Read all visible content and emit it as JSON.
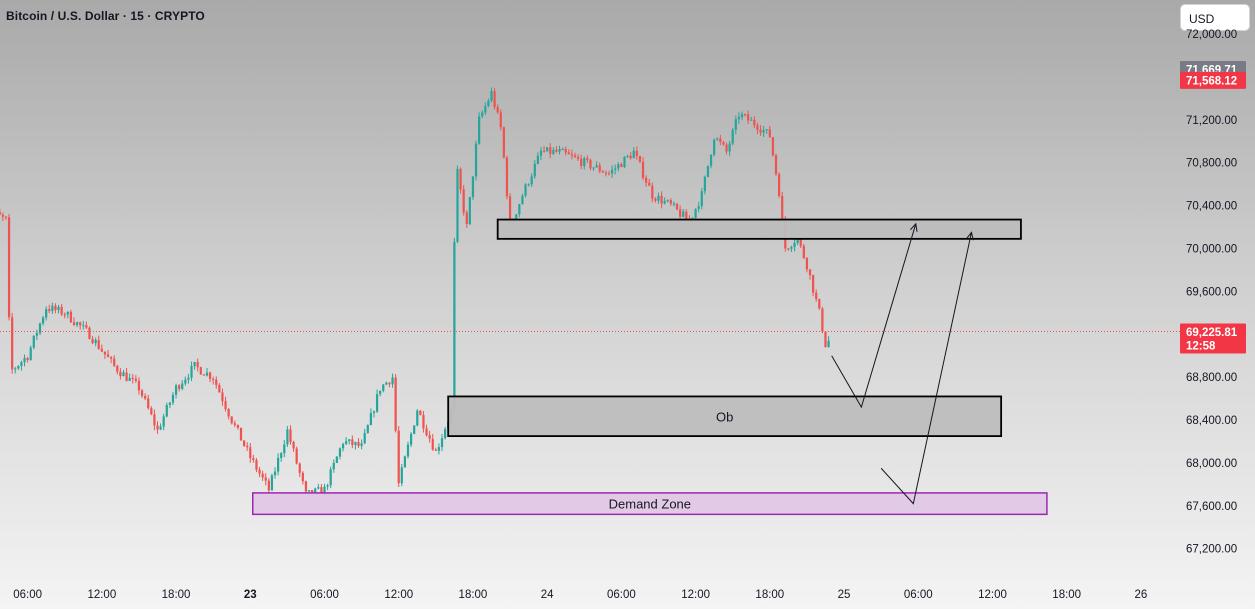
{
  "header": {
    "title": "Bitcoin / U.S. Dollar · 15 · CRYPTO",
    "currency": "USD"
  },
  "colors": {
    "up": "#26a69a",
    "down": "#ef5350",
    "last_price_line": "#ef5350",
    "ob_fill": "#bdbdbd",
    "demand_fill": "#e1c8e7",
    "demand_border": "#9c27b0",
    "arrow": "#131722"
  },
  "price_tags": [
    {
      "label": "71,669.71",
      "price": 71669.71,
      "color": "#787b86"
    },
    {
      "label": "71,568.12",
      "price": 71568.12,
      "color": "#f23645"
    },
    {
      "label": "69,225.81",
      "sub": "12:58",
      "price": 69225.81,
      "color": "#f23645"
    }
  ],
  "chart_data": {
    "type": "candlestick",
    "title": "Bitcoin / U.S. Dollar · 15 · CRYPTO",
    "ylim": [
      67000,
      72100
    ],
    "x_ticks": [
      {
        "label": "06:00",
        "t": 6,
        "bold": false
      },
      {
        "label": "12:00",
        "t": 12,
        "bold": false
      },
      {
        "label": "18:00",
        "t": 18,
        "bold": false
      },
      {
        "label": "23",
        "t": 24,
        "bold": true
      },
      {
        "label": "06:00",
        "t": 30,
        "bold": false
      },
      {
        "label": "12:00",
        "t": 36,
        "bold": false
      },
      {
        "label": "18:00",
        "t": 42,
        "bold": false
      },
      {
        "label": "24",
        "t": 48,
        "bold": false
      },
      {
        "label": "06:00",
        "t": 54,
        "bold": false
      },
      {
        "label": "12:00",
        "t": 60,
        "bold": false
      },
      {
        "label": "18:00",
        "t": 66,
        "bold": false
      },
      {
        "label": "25",
        "t": 72,
        "bold": false
      },
      {
        "label": "06:00",
        "t": 78,
        "bold": false
      },
      {
        "label": "12:00",
        "t": 84,
        "bold": false
      },
      {
        "label": "18:00",
        "t": 90,
        "bold": false
      },
      {
        "label": "26",
        "t": 96,
        "bold": false
      }
    ],
    "y_ticks": [
      {
        "label": "72,000.00",
        "v": 72000
      },
      {
        "label": "71,200.00",
        "v": 71200
      },
      {
        "label": "70,800.00",
        "v": 70800
      },
      {
        "label": "70,400.00",
        "v": 70400
      },
      {
        "label": "70,000.00",
        "v": 70000
      },
      {
        "label": "69,600.00",
        "v": 69600
      },
      {
        "label": "68,800.00",
        "v": 68800
      },
      {
        "label": "68,400.00",
        "v": 68400
      },
      {
        "label": "68,000.00",
        "v": 68000
      },
      {
        "label": "67,600.00",
        "v": 67600
      },
      {
        "label": "67,200.00",
        "v": 67200
      }
    ],
    "last_price": 69225.81,
    "price_path": [
      {
        "t": 2.5,
        "p": 70380
      },
      {
        "t": 4.3,
        "p": 70260
      },
      {
        "t": 4.6,
        "p": 68850
      },
      {
        "t": 6.0,
        "p": 69000
      },
      {
        "t": 7.5,
        "p": 69450
      },
      {
        "t": 9.0,
        "p": 69400
      },
      {
        "t": 11.0,
        "p": 69200
      },
      {
        "t": 13.0,
        "p": 68900
      },
      {
        "t": 15.0,
        "p": 68700
      },
      {
        "t": 16.5,
        "p": 68300
      },
      {
        "t": 18.0,
        "p": 68700
      },
      {
        "t": 19.5,
        "p": 68900
      },
      {
        "t": 21.0,
        "p": 68800
      },
      {
        "t": 22.5,
        "p": 68400
      },
      {
        "t": 24.0,
        "p": 68050
      },
      {
        "t": 25.5,
        "p": 67750
      },
      {
        "t": 27.0,
        "p": 68300
      },
      {
        "t": 28.5,
        "p": 67700
      },
      {
        "t": 30.0,
        "p": 67750
      },
      {
        "t": 31.5,
        "p": 68200
      },
      {
        "t": 33.0,
        "p": 68150
      },
      {
        "t": 34.5,
        "p": 68700
      },
      {
        "t": 35.5,
        "p": 68800
      },
      {
        "t": 36.0,
        "p": 67800
      },
      {
        "t": 37.5,
        "p": 68500
      },
      {
        "t": 39.0,
        "p": 68100
      },
      {
        "t": 40.3,
        "p": 68500
      },
      {
        "t": 40.6,
        "p": 70800
      },
      {
        "t": 41.5,
        "p": 70200
      },
      {
        "t": 42.5,
        "p": 71200
      },
      {
        "t": 43.5,
        "p": 71450
      },
      {
        "t": 44.3,
        "p": 71100
      },
      {
        "t": 45.0,
        "p": 70200
      },
      {
        "t": 46.0,
        "p": 70500
      },
      {
        "t": 47.5,
        "p": 70900
      },
      {
        "t": 49.0,
        "p": 70900
      },
      {
        "t": 51.0,
        "p": 70800
      },
      {
        "t": 53.0,
        "p": 70700
      },
      {
        "t": 55.0,
        "p": 70900
      },
      {
        "t": 56.5,
        "p": 70500
      },
      {
        "t": 58.0,
        "p": 70400
      },
      {
        "t": 59.5,
        "p": 70250
      },
      {
        "t": 60.5,
        "p": 70500
      },
      {
        "t": 61.5,
        "p": 71050
      },
      {
        "t": 62.5,
        "p": 70900
      },
      {
        "t": 63.5,
        "p": 71250
      },
      {
        "t": 65.0,
        "p": 71150
      },
      {
        "t": 66.0,
        "p": 71050
      },
      {
        "t": 66.8,
        "p": 70500
      },
      {
        "t": 67.2,
        "p": 70000
      },
      {
        "t": 68.2,
        "p": 70100
      },
      {
        "t": 69.0,
        "p": 69850
      },
      {
        "t": 70.0,
        "p": 69400
      },
      {
        "t": 70.6,
        "p": 69050
      },
      {
        "t": 70.9,
        "p": 69225.81
      }
    ],
    "candle_interval_hours": 0.25,
    "zones": [
      {
        "name": "upper-ob",
        "label": "",
        "t0": 44.0,
        "t1": 86.3,
        "p_low": 70090,
        "p_high": 70270,
        "style": "gray"
      },
      {
        "name": "ob",
        "label": "Ob",
        "t0": 40.0,
        "t1": 84.7,
        "p_low": 68250,
        "p_high": 68620,
        "style": "gray"
      },
      {
        "name": "demand",
        "label": "Demand Zone",
        "t0": 24.2,
        "t1": 88.4,
        "p_low": 67520,
        "p_high": 67720,
        "style": "purple"
      }
    ],
    "projections": [
      {
        "name": "projection-path-1",
        "points": [
          {
            "t": 71.0,
            "p": 69000
          },
          {
            "t": 73.4,
            "p": 68520
          },
          {
            "t": 77.8,
            "p": 70230
          }
        ]
      },
      {
        "name": "projection-path-2",
        "points": [
          {
            "t": 75.0,
            "p": 67950
          },
          {
            "t": 77.6,
            "p": 67620
          },
          {
            "t": 82.3,
            "p": 70150
          }
        ]
      }
    ]
  }
}
